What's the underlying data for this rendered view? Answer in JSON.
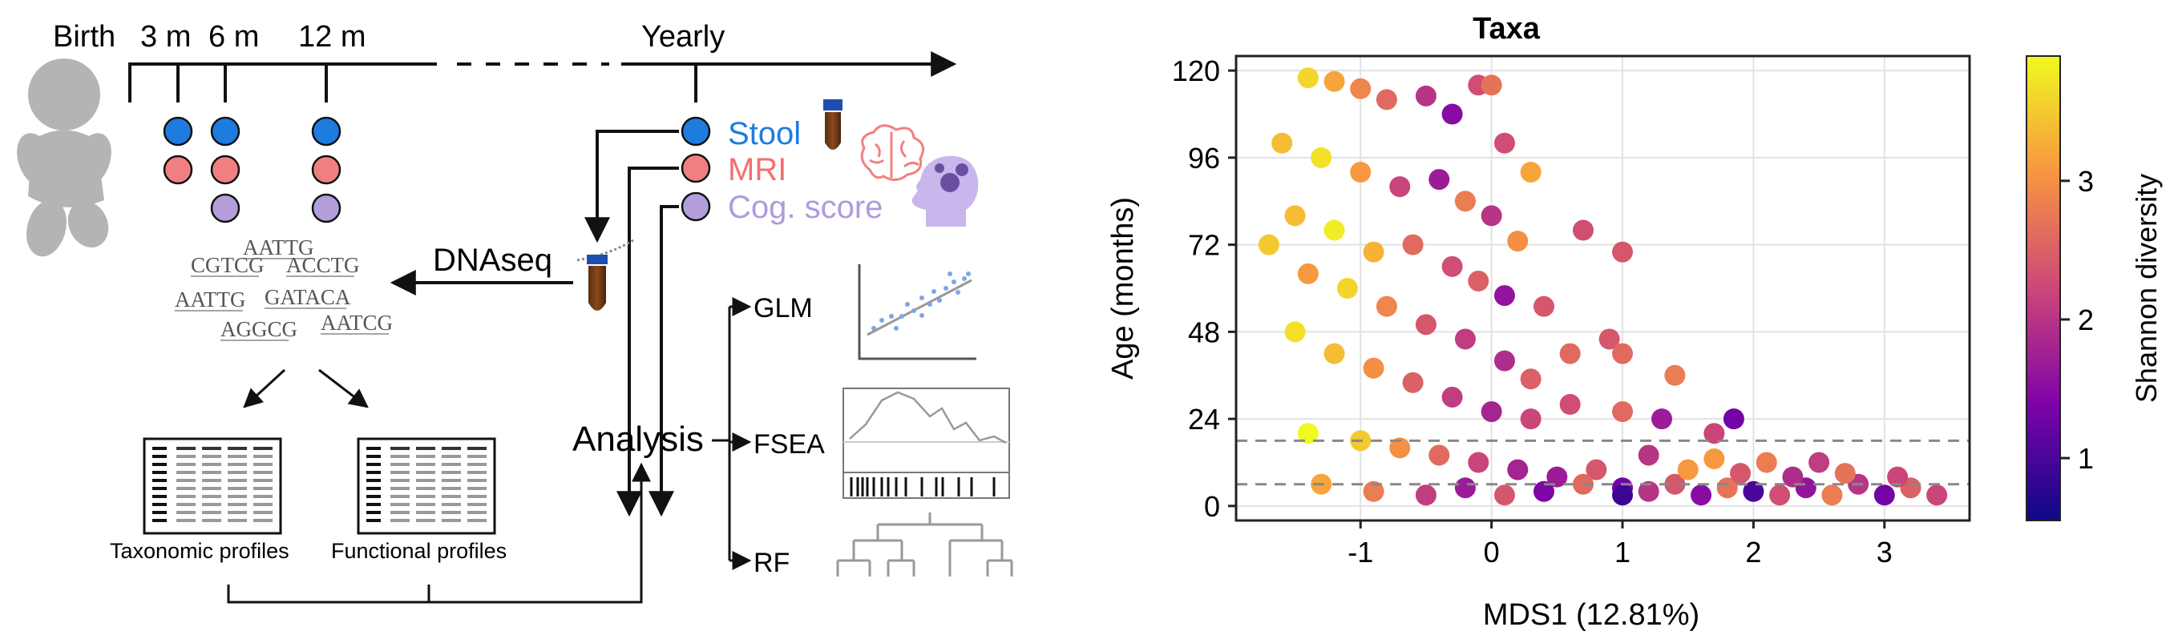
{
  "timeline": {
    "birth": "Birth",
    "m3": "3 m",
    "m6": "6 m",
    "m12": "12 m",
    "yearly": "Yearly"
  },
  "samples": {
    "stool": "Stool",
    "mri": "MRI",
    "cog": "Cog. score",
    "colors": {
      "stool": "#1e7be0",
      "mri": "#f08080",
      "cog": "#b39ddb"
    }
  },
  "dnaseq": "DNAseq",
  "sequences": [
    "AATTG",
    "CGTCG",
    "ACCTG",
    "AATTG",
    "GATACA",
    "AGGCG",
    "AATCG"
  ],
  "profiles": {
    "taxonomic": "Taxonomic profiles",
    "functional": "Functional profiles"
  },
  "analysis": {
    "label": "Analysis",
    "methods": [
      "GLM",
      "FSEA",
      "RF"
    ]
  },
  "chart_data": {
    "type": "scatter",
    "title": "Taxa",
    "xlabel": "MDS1 (12.81%)",
    "ylabel": "Age (months)",
    "xlim": [
      -1.95,
      3.65
    ],
    "ylim": [
      -4,
      124
    ],
    "xticks": [
      -1,
      0,
      1,
      2,
      3
    ],
    "yticks": [
      0,
      24,
      48,
      72,
      96,
      120
    ],
    "grid": true,
    "hlines": [
      6,
      18
    ],
    "colorbar": {
      "label": "Shannon diversity",
      "range": [
        0.55,
        3.9
      ],
      "ticks": [
        1,
        2,
        3
      ],
      "colormap": "plasma"
    },
    "points": [
      [
        -1.4,
        118,
        3.6
      ],
      [
        -1.2,
        117,
        3.2
      ],
      [
        -1.0,
        115,
        2.9
      ],
      [
        -0.8,
        112,
        2.6
      ],
      [
        -0.5,
        113,
        2.0
      ],
      [
        -0.3,
        108,
        1.5
      ],
      [
        -0.1,
        116,
        2.3
      ],
      [
        0.0,
        116,
        2.7
      ],
      [
        0.1,
        100,
        2.3
      ],
      [
        0.3,
        92,
        3.2
      ],
      [
        0.7,
        76,
        2.3
      ],
      [
        1.0,
        70,
        2.4
      ],
      [
        -1.6,
        100,
        3.4
      ],
      [
        -1.3,
        96,
        3.7
      ],
      [
        -1.0,
        92,
        3.1
      ],
      [
        -0.7,
        88,
        2.2
      ],
      [
        -0.4,
        90,
        1.7
      ],
      [
        -0.2,
        84,
        2.8
      ],
      [
        0.0,
        80,
        2.0
      ],
      [
        0.2,
        73,
        3.0
      ],
      [
        -1.5,
        80,
        3.4
      ],
      [
        -1.2,
        76,
        3.8
      ],
      [
        -0.9,
        70,
        3.3
      ],
      [
        -0.6,
        72,
        2.6
      ],
      [
        -0.3,
        66,
        2.3
      ],
      [
        -0.1,
        62,
        2.5
      ],
      [
        0.1,
        58,
        1.6
      ],
      [
        0.4,
        55,
        2.4
      ],
      [
        -1.7,
        72,
        3.5
      ],
      [
        -1.4,
        64,
        3.1
      ],
      [
        -1.1,
        60,
        3.6
      ],
      [
        -0.8,
        55,
        2.9
      ],
      [
        -0.5,
        50,
        2.4
      ],
      [
        -0.2,
        46,
        2.1
      ],
      [
        0.1,
        40,
        1.9
      ],
      [
        0.3,
        35,
        2.5
      ],
      [
        0.6,
        42,
        2.6
      ],
      [
        0.9,
        46,
        2.4
      ],
      [
        1.0,
        42,
        2.6
      ],
      [
        1.4,
        36,
        2.8
      ],
      [
        -1.5,
        48,
        3.7
      ],
      [
        -1.2,
        42,
        3.4
      ],
      [
        -0.9,
        38,
        3.0
      ],
      [
        -0.6,
        34,
        2.5
      ],
      [
        -0.3,
        30,
        2.1
      ],
      [
        0.0,
        26,
        1.8
      ],
      [
        0.3,
        24,
        2.2
      ],
      [
        0.6,
        28,
        2.3
      ],
      [
        1.0,
        26,
        2.6
      ],
      [
        1.3,
        24,
        1.7
      ],
      [
        1.7,
        20,
        2.2
      ],
      [
        1.85,
        24,
        1.3
      ],
      [
        -1.4,
        20,
        3.9
      ],
      [
        -1.0,
        18,
        3.5
      ],
      [
        -0.7,
        16,
        3.0
      ],
      [
        -0.4,
        14,
        2.6
      ],
      [
        -0.1,
        12,
        2.2
      ],
      [
        0.2,
        10,
        1.8
      ],
      [
        0.5,
        8,
        1.7
      ],
      [
        0.8,
        10,
        2.4
      ],
      [
        -1.3,
        6,
        3.2
      ],
      [
        -0.9,
        4,
        2.8
      ],
      [
        -0.5,
        3,
        2.1
      ],
      [
        -0.2,
        5,
        1.7
      ],
      [
        0.1,
        3,
        2.4
      ],
      [
        0.4,
        4,
        1.4
      ],
      [
        0.7,
        6,
        2.6
      ],
      [
        1.0,
        5,
        1.3
      ],
      [
        1.0,
        3,
        0.9
      ],
      [
        1.2,
        4,
        2.0
      ],
      [
        1.4,
        6,
        2.4
      ],
      [
        1.6,
        3,
        1.5
      ],
      [
        1.8,
        5,
        2.7
      ],
      [
        2.0,
        4,
        1.0
      ],
      [
        2.2,
        3,
        2.3
      ],
      [
        2.4,
        5,
        1.6
      ],
      [
        2.6,
        3,
        2.8
      ],
      [
        2.8,
        6,
        2.0
      ],
      [
        3.0,
        3,
        1.3
      ],
      [
        3.2,
        5,
        2.5
      ],
      [
        3.4,
        3,
        2.2
      ],
      [
        1.5,
        10,
        3.1
      ],
      [
        1.9,
        9,
        2.4
      ],
      [
        2.3,
        8,
        1.9
      ],
      [
        2.7,
        9,
        2.7
      ],
      [
        3.1,
        8,
        2.2
      ],
      [
        1.2,
        14,
        2.0
      ],
      [
        1.7,
        13,
        3.1
      ],
      [
        2.1,
        12,
        2.8
      ],
      [
        2.5,
        12,
        2.1
      ]
    ]
  }
}
